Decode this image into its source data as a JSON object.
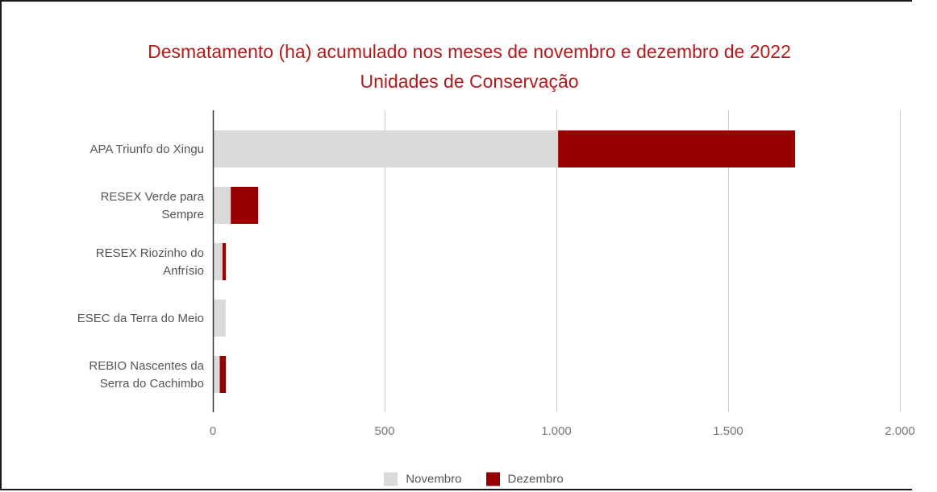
{
  "chart_data": {
    "type": "bar",
    "orientation": "horizontal",
    "stacked": true,
    "title": "Desmatamento (ha) acumulado nos meses de novembro e dezembro de 2022",
    "subtitle": "Unidades de Conservação",
    "xlabel": "",
    "ylabel": "",
    "categories": [
      [
        "APA Triunfo do Xingu"
      ],
      [
        "RESEX Verde para",
        "Sempre"
      ],
      [
        "RESEX Riozinho do",
        "Anfrísio"
      ],
      [
        "ESEC da Terra do Meio"
      ],
      [
        "REBIO Nascentes da",
        "Serra do Cachimbo"
      ]
    ],
    "series": [
      {
        "name": "Novembro",
        "color": "#d9d9d9",
        "values": [
          1005,
          52,
          28,
          37,
          20
        ]
      },
      {
        "name": "Dezembro",
        "color": "#990000",
        "values": [
          690,
          80,
          10,
          0,
          18
        ]
      }
    ],
    "xlim": [
      0,
      2000
    ],
    "x_ticks": [
      0,
      500,
      1000,
      1500,
      2000
    ],
    "x_tick_labels": [
      "0",
      "500",
      "1.000",
      "1.500",
      "2.000"
    ],
    "grid": true,
    "legend_position": "bottom"
  }
}
